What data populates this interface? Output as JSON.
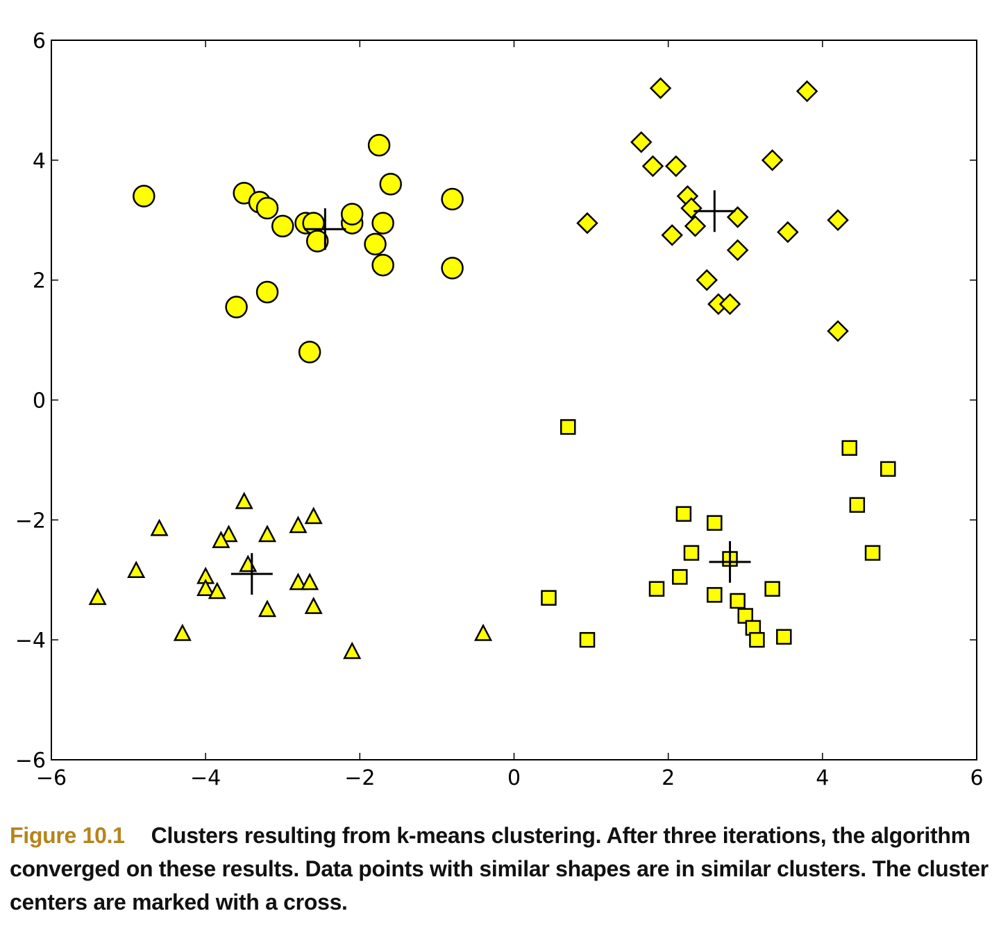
{
  "chart_data": {
    "type": "scatter",
    "xlim": [
      -6,
      6
    ],
    "ylim": [
      -6,
      6
    ],
    "xticks": [
      "−6",
      "−4",
      "−2",
      "0",
      "2",
      "4",
      "6"
    ],
    "yticks": [
      "6",
      "4",
      "2",
      "0",
      "−2",
      "−4",
      "−6"
    ],
    "grid": false,
    "legend": "none",
    "marker_fill": "#ffff00",
    "marker_edge": "#000000",
    "series": [
      {
        "marker": "circle",
        "points": [
          [
            -4.8,
            3.4
          ],
          [
            -3.5,
            3.45
          ],
          [
            -3.3,
            3.3
          ],
          [
            -3.2,
            3.2
          ],
          [
            -3.0,
            2.9
          ],
          [
            -2.7,
            2.95
          ],
          [
            -2.6,
            2.95
          ],
          [
            -2.55,
            2.65
          ],
          [
            -2.1,
            2.95
          ],
          [
            -2.1,
            3.1
          ],
          [
            -1.75,
            4.25
          ],
          [
            -1.6,
            3.6
          ],
          [
            -1.7,
            2.95
          ],
          [
            -1.8,
            2.6
          ],
          [
            -1.7,
            2.25
          ],
          [
            -0.8,
            3.35
          ],
          [
            -0.8,
            2.2
          ],
          [
            -3.2,
            1.8
          ],
          [
            -3.6,
            1.55
          ],
          [
            -2.65,
            0.8
          ]
        ]
      },
      {
        "marker": "diamond",
        "points": [
          [
            1.9,
            5.2
          ],
          [
            3.8,
            5.15
          ],
          [
            1.65,
            4.3
          ],
          [
            1.8,
            3.9
          ],
          [
            2.1,
            3.9
          ],
          [
            3.35,
            4.0
          ],
          [
            2.25,
            3.4
          ],
          [
            2.3,
            3.2
          ],
          [
            2.35,
            2.9
          ],
          [
            2.05,
            2.75
          ],
          [
            2.9,
            3.05
          ],
          [
            0.95,
            2.95
          ],
          [
            2.9,
            2.5
          ],
          [
            3.55,
            2.8
          ],
          [
            4.2,
            3.0
          ],
          [
            2.5,
            2.0
          ],
          [
            2.65,
            1.6
          ],
          [
            2.8,
            1.6
          ],
          [
            4.2,
            1.15
          ]
        ]
      },
      {
        "marker": "square",
        "points": [
          [
            0.7,
            -0.45
          ],
          [
            4.35,
            -0.8
          ],
          [
            4.85,
            -1.15
          ],
          [
            4.45,
            -1.75
          ],
          [
            4.65,
            -2.55
          ],
          [
            2.2,
            -1.9
          ],
          [
            2.6,
            -2.05
          ],
          [
            2.3,
            -2.55
          ],
          [
            2.8,
            -2.65
          ],
          [
            2.15,
            -2.95
          ],
          [
            1.85,
            -3.15
          ],
          [
            2.6,
            -3.25
          ],
          [
            2.9,
            -3.35
          ],
          [
            3.0,
            -3.6
          ],
          [
            3.1,
            -3.8
          ],
          [
            3.15,
            -4.0
          ],
          [
            3.35,
            -3.15
          ],
          [
            3.5,
            -3.95
          ],
          [
            0.45,
            -3.3
          ],
          [
            0.95,
            -4.0
          ]
        ]
      },
      {
        "marker": "triangle",
        "points": [
          [
            -3.5,
            -1.7
          ],
          [
            -4.6,
            -2.15
          ],
          [
            -3.7,
            -2.25
          ],
          [
            -3.8,
            -2.35
          ],
          [
            -3.2,
            -2.25
          ],
          [
            -2.8,
            -2.1
          ],
          [
            -2.6,
            -1.95
          ],
          [
            -4.9,
            -2.85
          ],
          [
            -4.0,
            -2.95
          ],
          [
            -4.0,
            -3.15
          ],
          [
            -3.85,
            -3.2
          ],
          [
            -3.45,
            -2.75
          ],
          [
            -2.8,
            -3.05
          ],
          [
            -2.65,
            -3.05
          ],
          [
            -3.2,
            -3.5
          ],
          [
            -2.6,
            -3.45
          ],
          [
            -5.4,
            -3.3
          ],
          [
            -4.3,
            -3.9
          ],
          [
            -2.1,
            -4.2
          ],
          [
            -0.4,
            -3.9
          ]
        ]
      }
    ],
    "centers": [
      [
        -2.45,
        2.85
      ],
      [
        2.6,
        3.15
      ],
      [
        2.8,
        -2.7
      ],
      [
        -3.4,
        -2.9
      ]
    ],
    "caption": {
      "label": "Figure 10.1",
      "text": "Clusters resulting from k-means clustering. After three iterations, the algorithm converged on these results. Data points with similar shapes are in similar clusters. The cluster centers are marked with a cross."
    }
  }
}
